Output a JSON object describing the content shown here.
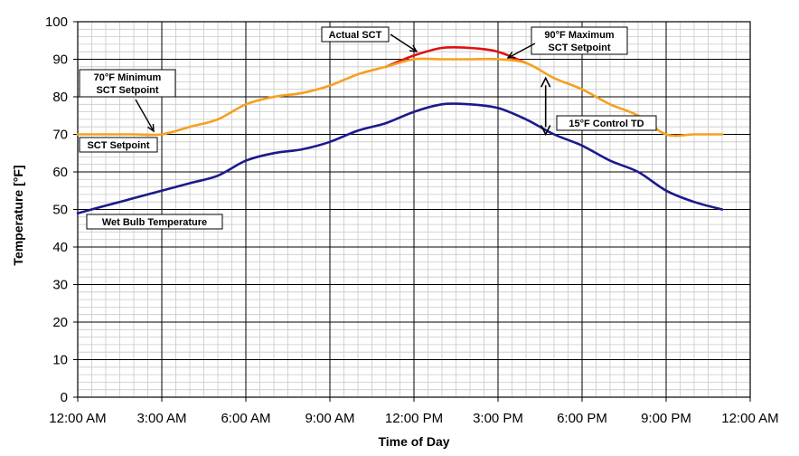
{
  "chart_data": {
    "type": "line",
    "xlabel": "Time of Day",
    "ylabel": "Temperature [°F]",
    "ylim": [
      0,
      100
    ],
    "yticks": [
      0,
      10,
      20,
      30,
      40,
      50,
      60,
      70,
      80,
      90,
      100
    ],
    "xlim_hours": [
      0,
      24
    ],
    "xticks": [
      "12:00 AM",
      "3:00 AM",
      "6:00 AM",
      "9:00 AM",
      "12:00 PM",
      "3:00 PM",
      "6:00 PM",
      "9:00 PM",
      "12:00 AM"
    ],
    "grid": true,
    "x_hours": [
      0,
      1,
      2,
      3,
      4,
      5,
      6,
      7,
      8,
      9,
      10,
      11,
      12,
      13,
      14,
      15,
      16,
      17,
      18,
      19,
      20,
      21,
      22,
      23
    ],
    "series": [
      {
        "name": "Wet Bulb Temperature",
        "color": "#1a1a8c",
        "values": [
          49,
          51,
          53,
          55,
          57,
          59,
          63,
          65,
          66,
          68,
          71,
          73,
          76,
          78,
          78,
          77,
          74,
          70,
          67,
          63,
          60,
          55,
          52,
          50
        ]
      },
      {
        "name": "Actual SCT",
        "color": "#e01010",
        "values": [
          null,
          null,
          null,
          null,
          null,
          null,
          null,
          null,
          null,
          null,
          null,
          88,
          91,
          93,
          93,
          92,
          89,
          null,
          null,
          null,
          null,
          null,
          null,
          null
        ]
      },
      {
        "name": "SCT Setpoint",
        "color": "#f5a020",
        "values": [
          70,
          70,
          70,
          70,
          72,
          74,
          78,
          80,
          81,
          83,
          86,
          88,
          90,
          90,
          90,
          90,
          89,
          85,
          82,
          78,
          75,
          70,
          70,
          70
        ]
      }
    ],
    "annotations": [
      {
        "text_lines": [
          "Actual SCT"
        ]
      },
      {
        "text_lines": [
          "90°F Maximum",
          "SCT Setpoint"
        ]
      },
      {
        "text_lines": [
          "70°F Minimum",
          "SCT Setpoint"
        ]
      },
      {
        "text_lines": [
          "SCT Setpoint"
        ]
      },
      {
        "text_lines": [
          "15°F Control TD"
        ]
      },
      {
        "text_lines": [
          "Wet Bulb Temperature"
        ]
      }
    ]
  }
}
